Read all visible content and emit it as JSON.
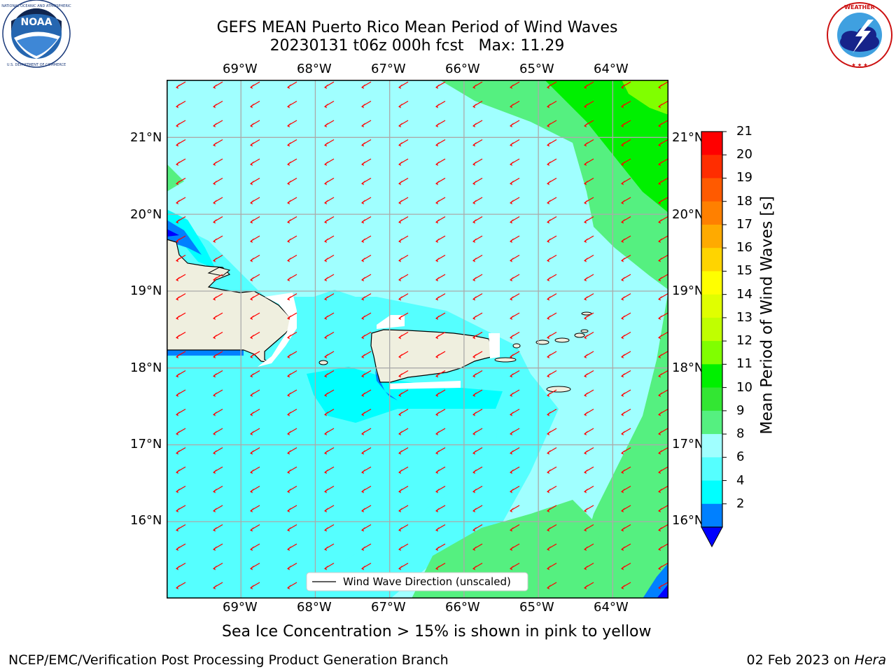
{
  "title": {
    "line1": "GEFS MEAN Puerto Rico Mean Period of Wind Waves",
    "line2": "20230131 t06z 000h fcst",
    "max_label": "Max: 11.29"
  },
  "logos": {
    "left": {
      "icon": "noaa-logo-icon",
      "text": "NOAA",
      "ring_text_top": "NATIONAL OCEANIC AND ATMOSPHERIC ADMINISTRATION",
      "ring_text_bottom": "U.S. DEPARTMENT OF COMMERCE"
    },
    "right": {
      "icon": "nws-logo-icon",
      "ring_text": "NATIONAL WEATHER SERVICE"
    }
  },
  "map": {
    "lon_labels": [
      "69°W",
      "68°W",
      "67°W",
      "66°W",
      "65°W",
      "64°W"
    ],
    "lat_labels": [
      "21°N",
      "20°N",
      "19°N",
      "18°N",
      "17°N",
      "16°N"
    ],
    "lon_values": [
      -69,
      -68,
      -67,
      -66,
      -65,
      -64
    ],
    "lat_values": [
      21,
      20,
      19,
      18,
      17,
      16
    ],
    "extent": {
      "lon_min": -70,
      "lon_max": -63.25,
      "lat_min": 15,
      "lat_max": 21.75
    },
    "grid": true,
    "arrow_color": "#ff0000",
    "land_color": "#efefdf",
    "legend_label": "Wind Wave Direction (unscaled)"
  },
  "colorbar": {
    "label": "Mean Period of Wind Waves [s]",
    "ticks": [
      "21",
      "20",
      "19",
      "18",
      "17",
      "16",
      "15",
      "14",
      "13",
      "12",
      "11",
      "10",
      "9",
      "8",
      "6",
      "4",
      "2"
    ],
    "colors": [
      "#ff0000",
      "#ff2d00",
      "#ff5a00",
      "#ff8000",
      "#ffaa00",
      "#ffd400",
      "#ffff00",
      "#e0ff00",
      "#c0ff00",
      "#80ff00",
      "#00f000",
      "#33e633",
      "#55f080",
      "#a0ffff",
      "#55ffff",
      "#00ffff",
      "#0080ff"
    ],
    "extend_color": "#0000ff"
  },
  "subcaption": "Sea Ice Concentration > 15% is shown in pink to yellow",
  "footer": {
    "left": "NCEP/EMC/Verification Post Processing Product Generation Branch",
    "right_prefix": "02 Feb 2023 on",
    "right_host": "Hera"
  }
}
